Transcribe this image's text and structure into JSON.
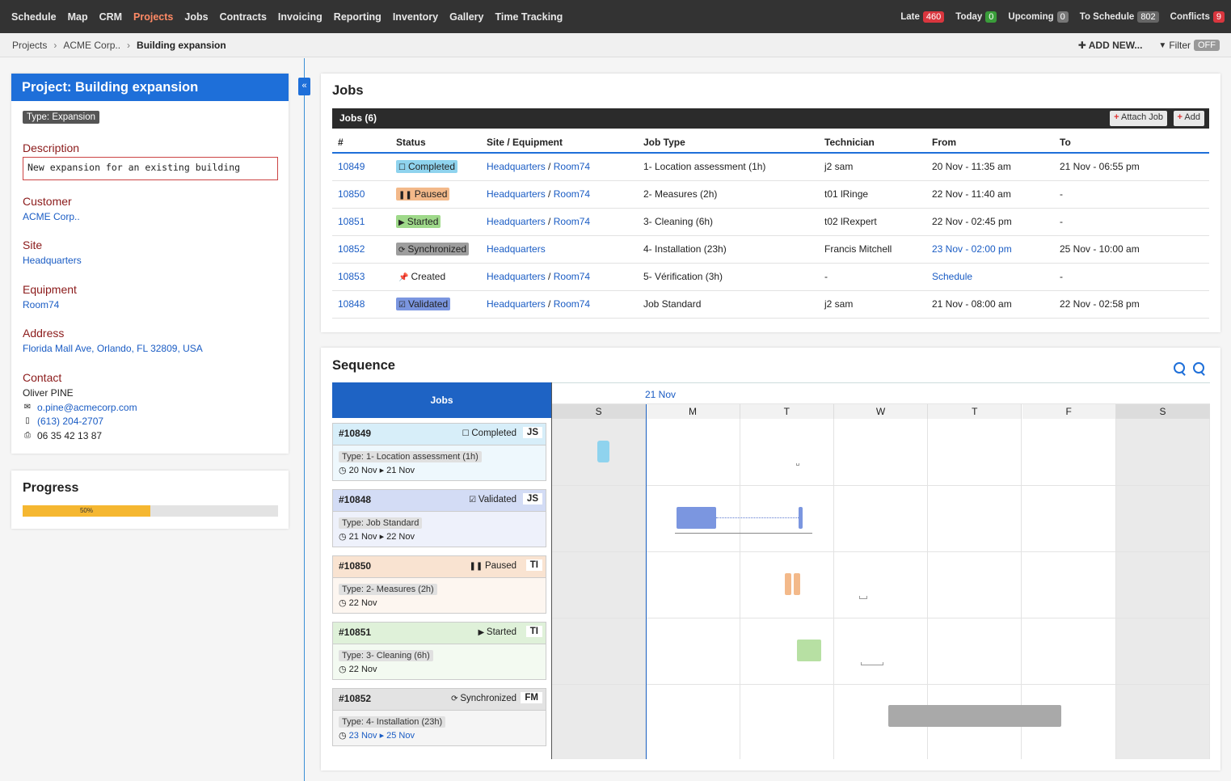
{
  "nav": {
    "items": [
      {
        "label": "Schedule",
        "active": false
      },
      {
        "label": "Map",
        "active": false
      },
      {
        "label": "CRM",
        "active": false
      },
      {
        "label": "Projects",
        "active": true
      },
      {
        "label": "Jobs",
        "active": false
      },
      {
        "label": "Contracts",
        "active": false
      },
      {
        "label": "Invoicing",
        "active": false
      },
      {
        "label": "Reporting",
        "active": false
      },
      {
        "label": "Inventory",
        "active": false
      },
      {
        "label": "Gallery",
        "active": false
      },
      {
        "label": "Time Tracking",
        "active": false
      }
    ],
    "stats": [
      {
        "label": "Late",
        "count": "460",
        "color": "#d9363e"
      },
      {
        "label": "Today",
        "count": "0",
        "color": "#3a9d3a"
      },
      {
        "label": "Upcoming",
        "count": "0",
        "color": "#777777"
      },
      {
        "label": "To Schedule",
        "count": "802",
        "color": "#666666"
      },
      {
        "label": "Conflicts",
        "count": "9",
        "color": "#d9363e"
      }
    ]
  },
  "breadcrumb": {
    "items": [
      "Projects",
      "ACME Corp..",
      "Building expansion"
    ],
    "add_new": "ADD NEW...",
    "filter_label": "Filter",
    "filter_state": "OFF"
  },
  "project": {
    "title": "Project: Building expansion",
    "type_badge": "Type: Expansion",
    "description_label": "Description",
    "description": "New expansion for an existing building",
    "customer_label": "Customer",
    "customer": "ACME Corp..",
    "site_label": "Site",
    "site": "Headquarters",
    "equipment_label": "Equipment",
    "equipment": "Room74",
    "address_label": "Address",
    "address": "Florida Mall Ave, Orlando, FL 32809, USA",
    "contact_label": "Contact",
    "contact_name": "Oliver PINE",
    "contact_email": "o.pine@acmecorp.com",
    "contact_mobile": "(613) 204-2707",
    "contact_fax": "06 35 42 13 87",
    "icons": {
      "email": "envelope-icon",
      "mobile": "mobile-phone-icon",
      "fax": "printer-icon",
      "collapse": "double-chevron-left-icon"
    }
  },
  "progress": {
    "title": "Progress",
    "percent": 50,
    "label": "50%"
  },
  "jobs": {
    "title": "Jobs",
    "bar_title": "Jobs (6)",
    "attach_label": "Attach Job",
    "add_label": "Add",
    "columns": [
      "#",
      "Status",
      "Site / Equipment",
      "Job Type",
      "Technician",
      "From",
      "To"
    ],
    "rows": [
      {
        "id": "10849",
        "status": "Completed",
        "status_icon": "square-icon",
        "site": "Headquarters",
        "equipment": "Room74",
        "job_type": "1- Location assessment (1h)",
        "technician": "j2 sam",
        "from": "20 Nov - 11:35 am",
        "from_link": false,
        "to": "21 Nov - 06:55 pm"
      },
      {
        "id": "10850",
        "status": "Paused",
        "status_icon": "pause-icon",
        "site": "Headquarters",
        "equipment": "Room74",
        "job_type": "2- Measures (2h)",
        "technician": "t01 lRinge",
        "from": "22 Nov - 11:40 am",
        "from_link": false,
        "to": "-"
      },
      {
        "id": "10851",
        "status": "Started",
        "status_icon": "play-icon",
        "site": "Headquarters",
        "equipment": "Room74",
        "job_type": "3- Cleaning (6h)",
        "technician": "t02 lRexpert",
        "from": "22 Nov - 02:45 pm",
        "from_link": false,
        "to": "-"
      },
      {
        "id": "10852",
        "status": "Synchronized",
        "status_icon": "sync-icon",
        "site": "Headquarters",
        "equipment": "",
        "job_type": "4- Installation (23h)",
        "technician": "Francis Mitchell",
        "from": "23 Nov - 02:00 pm",
        "from_link": true,
        "to": "25 Nov - 10:00 am"
      },
      {
        "id": "10853",
        "status": "Created",
        "status_icon": "pin-icon",
        "site": "Headquarters",
        "equipment": "Room74",
        "job_type": "5- Vérification (3h)",
        "technician": "-",
        "from": "Schedule",
        "from_link": true,
        "to": "-"
      },
      {
        "id": "10848",
        "status": "Validated",
        "status_icon": "checkbox-icon",
        "site": "Headquarters",
        "equipment": "Room74",
        "job_type": "Job Standard",
        "technician": "j2 sam",
        "from": "21 Nov - 08:00 am",
        "from_link": false,
        "to": "22 Nov - 02:58 pm"
      }
    ],
    "status_colors": {
      "Completed": "#8fd3ee",
      "Paused": "#f3b98a",
      "Started": "#9fd98a",
      "Synchronized": "#9e9e9e",
      "Created": "transparent",
      "Validated": "#7b96e0"
    }
  },
  "sequence": {
    "title": "Sequence",
    "jobs_header": "Jobs",
    "month_label": "21 Nov",
    "days": [
      {
        "label": "S",
        "weekend": true
      },
      {
        "label": "M",
        "weekend": false
      },
      {
        "label": "T",
        "weekend": false
      },
      {
        "label": "W",
        "weekend": false
      },
      {
        "label": "T",
        "weekend": false
      },
      {
        "label": "F",
        "weekend": false
      },
      {
        "label": "S",
        "weekend": true
      }
    ],
    "tiles": [
      {
        "id": "#10849",
        "status": "Completed",
        "status_icon": "square-icon",
        "initials": "JS",
        "type": "Type: 1- Location assessment (1h)",
        "dates": "20 Nov ▸ 21 Nov",
        "dates_link": false,
        "head_color": "#d7eef9",
        "body_color": "#eef8fd"
      },
      {
        "id": "#10848",
        "status": "Validated",
        "status_icon": "checkbox-icon",
        "initials": "JS",
        "type": "Type: Job Standard",
        "dates": "21 Nov ▸ 22 Nov",
        "dates_link": false,
        "head_color": "#d3dcf5",
        "body_color": "#eef1fb"
      },
      {
        "id": "#10850",
        "status": "Paused",
        "status_icon": "pause-icon",
        "initials": "TI",
        "type": "Type: 2- Measures (2h)",
        "dates": "22 Nov",
        "dates_link": false,
        "head_color": "#f9e3d1",
        "body_color": "#fdf6f0"
      },
      {
        "id": "#10851",
        "status": "Started",
        "status_icon": "play-icon",
        "initials": "TI",
        "type": "Type: 3- Cleaning (6h)",
        "dates": "22 Nov",
        "dates_link": false,
        "head_color": "#dff1d9",
        "body_color": "#f3faf1"
      },
      {
        "id": "#10852",
        "status": "Synchronized",
        "status_icon": "sync-icon",
        "initials": "FM",
        "type": "Type: 4- Installation (23h)",
        "dates": "23 Nov ▸ 25 Nov",
        "dates_link": true,
        "head_color": "#e3e3e3",
        "body_color": "#f5f5f5"
      }
    ]
  }
}
